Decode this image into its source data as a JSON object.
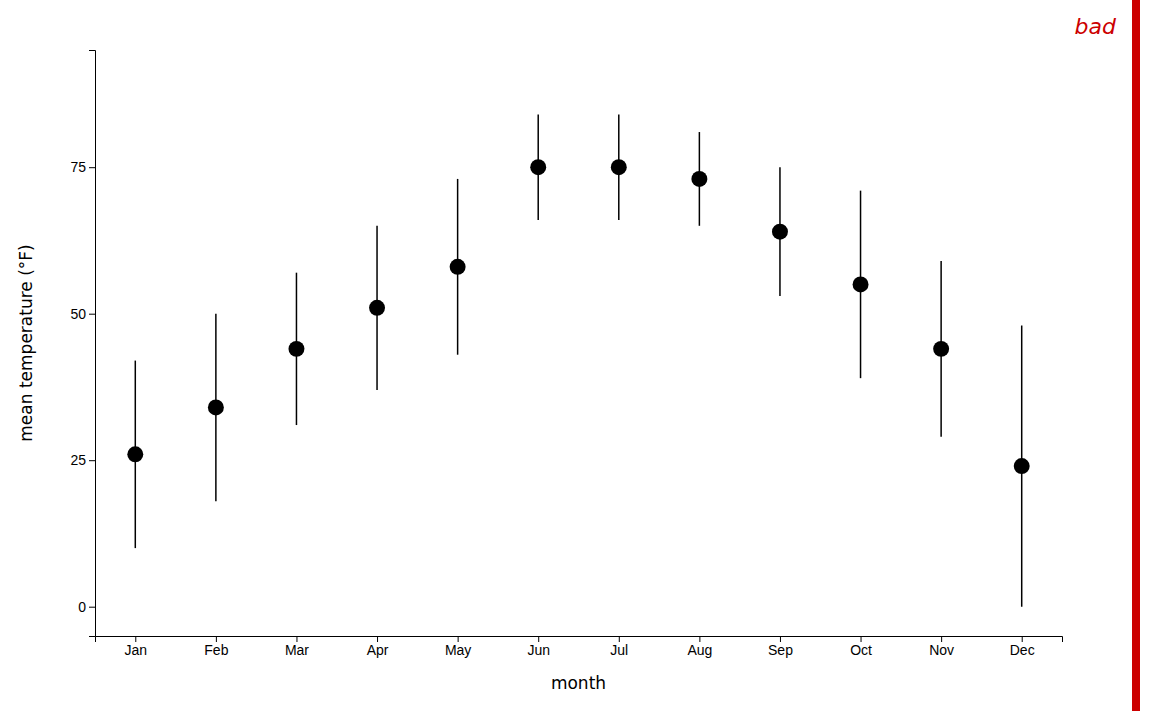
{
  "chart_data": {
    "type": "errorbar",
    "categories": [
      "Jan",
      "Feb",
      "Mar",
      "Apr",
      "May",
      "Jun",
      "Jul",
      "Aug",
      "Sep",
      "Oct",
      "Nov",
      "Dec"
    ],
    "values": [
      26,
      34,
      44,
      51,
      58,
      75,
      75,
      73,
      64,
      55,
      44,
      24
    ],
    "errors": [
      16,
      16,
      13,
      14,
      15,
      9,
      9,
      8,
      11,
      16,
      15,
      24
    ],
    "color": "black",
    "marker": "circle",
    "xlabel": "month",
    "ylabel": "mean temperature (°F)",
    "ylim": [
      -5,
      95
    ],
    "yticks": [
      0,
      25,
      50,
      75
    ],
    "grid": false,
    "annotations": [
      {
        "text": "bad",
        "color": "#cc0000"
      }
    ]
  }
}
